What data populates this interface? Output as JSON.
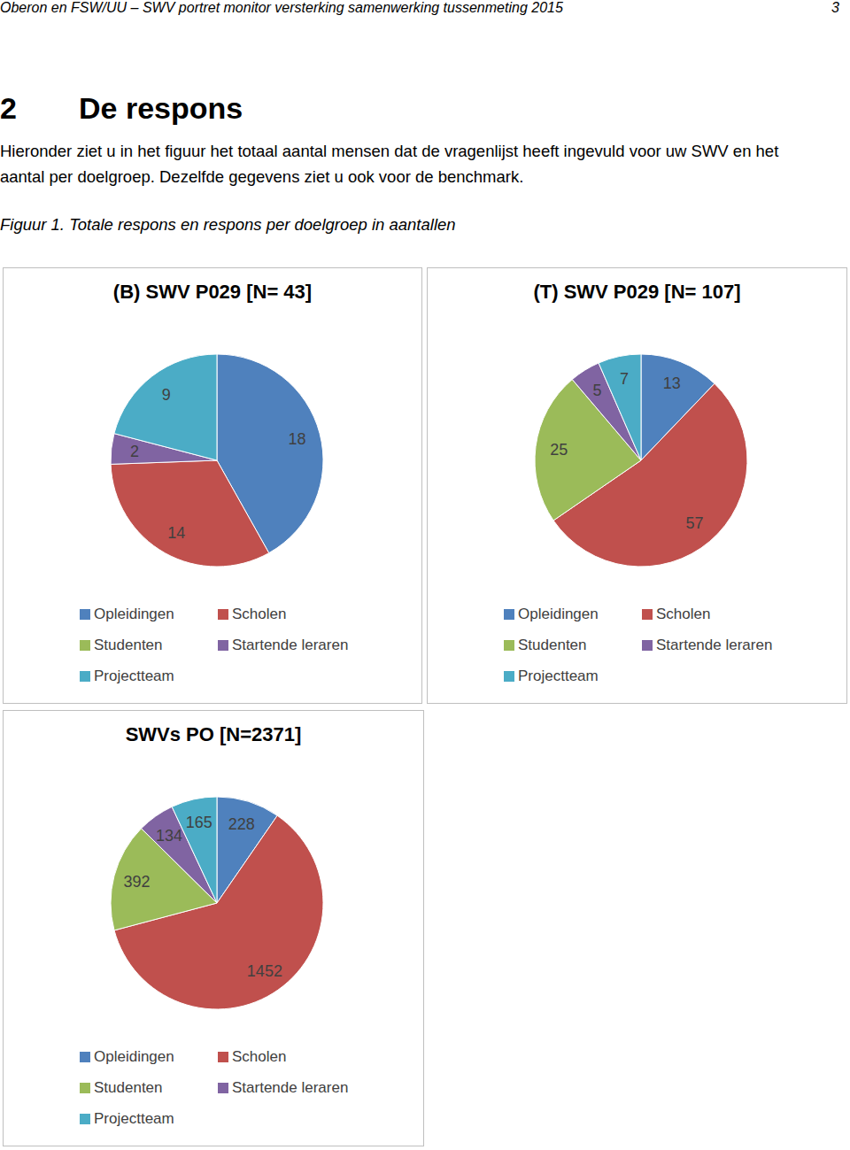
{
  "header": {
    "text": "Oberon en FSW/UU – SWV portret monitor versterking samenwerking tussenmeting 2015",
    "page": 3
  },
  "heading": {
    "number": 2,
    "text": "De respons"
  },
  "paragraph": [
    "Hieronder ziet u in het figuur het totaal aantal mensen dat de vragenlijst heeft ingevuld voor uw SWV en het",
    "aantal per doelgroep. Dezelfde gegevens ziet u ook voor de benchmark."
  ],
  "caption": "Figuur 1. Totale respons en respons per doelgroep in aantallen",
  "chart_data": [
    {
      "type": "pie",
      "title": "(B) SWV P029 [N= 43]",
      "categories": [
        "Opleidingen",
        "Scholen",
        "Studenten",
        "Startende leraren",
        "Projectteam"
      ],
      "values": [
        18,
        14,
        null,
        2,
        9
      ],
      "colors": [
        "#4f81bd",
        "#c0504d",
        "#9bbb59",
        "#8064a2",
        "#4bacc6"
      ],
      "data_labels": true,
      "legend": "bottom"
    },
    {
      "type": "pie",
      "title": "(T) SWV P029 [N= 107]",
      "categories": [
        "Opleidingen",
        "Scholen",
        "Studenten",
        "Startende leraren",
        "Projectteam"
      ],
      "values": [
        13,
        57,
        25,
        5,
        7
      ],
      "colors": [
        "#4f81bd",
        "#c0504d",
        "#9bbb59",
        "#8064a2",
        "#4bacc6"
      ],
      "data_labels": true,
      "legend": "bottom"
    },
    {
      "type": "pie",
      "title": "SWVs PO [N=2371]",
      "categories": [
        "Opleidingen",
        "Scholen",
        "Studenten",
        "Startende leraren",
        "Projectteam"
      ],
      "values": [
        228,
        1452,
        392,
        134,
        165
      ],
      "colors": [
        "#4f81bd",
        "#c0504d",
        "#9bbb59",
        "#8064a2",
        "#4bacc6"
      ],
      "data_labels": true,
      "legend": "bottom"
    }
  ]
}
